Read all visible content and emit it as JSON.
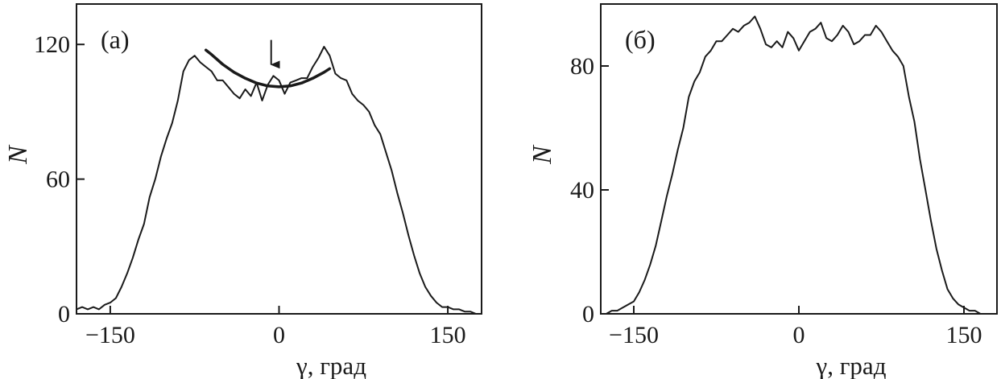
{
  "chart_data": [
    {
      "type": "line",
      "panel_label": "(а)",
      "xlabel": "γ, град",
      "ylabel": "N",
      "xlim": [
        -180,
        180
      ],
      "ylim": [
        0,
        138
      ],
      "xticks": [
        -150,
        0,
        150
      ],
      "yticks": [
        0,
        60,
        120
      ],
      "grid": false,
      "series": [
        {
          "x": [
            -180,
            -175,
            -170,
            -165,
            -160,
            -155,
            -150,
            -145,
            -140,
            -135,
            -130,
            -125,
            -120,
            -115,
            -110,
            -105,
            -100,
            -95,
            -90,
            -85,
            -80,
            -75,
            -70,
            -65,
            -60,
            -55,
            -50,
            -45,
            -40,
            -35,
            -30,
            -25,
            -20,
            -15,
            -10,
            -5,
            0,
            5,
            10,
            15,
            20,
            25,
            30,
            35,
            40,
            45,
            50,
            55,
            60,
            65,
            70,
            75,
            80,
            85,
            90,
            95,
            100,
            105,
            110,
            115,
            120,
            125,
            130,
            135,
            140,
            145,
            150,
            155,
            160,
            165,
            170,
            175,
            180
          ],
          "y": [
            2,
            3,
            2,
            3,
            2,
            4,
            5,
            7,
            12,
            18,
            25,
            33,
            40,
            52,
            60,
            70,
            78,
            85,
            95,
            108,
            113,
            115,
            112,
            110,
            108,
            104,
            104,
            101,
            98,
            96,
            100,
            97,
            103,
            95,
            102,
            106,
            104,
            98,
            103,
            104,
            105,
            105,
            110,
            114,
            119,
            115,
            107,
            105,
            104,
            98,
            95,
            93,
            90,
            84,
            80,
            72,
            64,
            54,
            45,
            35,
            26,
            18,
            12,
            8,
            5,
            3,
            3,
            2,
            2,
            1,
            1,
            0,
            0
          ]
        },
        {
          "x": [
            -65,
            -60,
            -50,
            -40,
            -30,
            -20,
            -10,
            0,
            10,
            20,
            30,
            40,
            45
          ],
          "y": [
            117.5,
            115.5,
            111.1,
            107.6,
            104.9,
            102.8,
            101.5,
            101.1,
            101.5,
            102.8,
            104.9,
            107.6,
            109.2
          ]
        }
      ],
      "annotations": [
        {
          "type": "arrow",
          "x": -7,
          "y_from": 122,
          "y_to": 111
        }
      ]
    },
    {
      "type": "line",
      "panel_label": "(б)",
      "xlabel": "γ, град",
      "ylabel": "N",
      "xlim": [
        -180,
        180
      ],
      "ylim": [
        0,
        100
      ],
      "xticks": [
        -150,
        0,
        150
      ],
      "yticks": [
        0,
        40,
        80
      ],
      "grid": false,
      "series": [
        {
          "x": [
            -180,
            -175,
            -170,
            -165,
            -160,
            -155,
            -150,
            -145,
            -140,
            -135,
            -130,
            -125,
            -120,
            -115,
            -110,
            -105,
            -100,
            -95,
            -90,
            -85,
            -80,
            -75,
            -70,
            -65,
            -60,
            -55,
            -50,
            -45,
            -40,
            -35,
            -30,
            -25,
            -20,
            -15,
            -10,
            -5,
            0,
            5,
            10,
            15,
            20,
            25,
            30,
            35,
            40,
            45,
            50,
            55,
            60,
            65,
            70,
            75,
            80,
            85,
            90,
            95,
            100,
            105,
            110,
            115,
            120,
            125,
            130,
            135,
            140,
            145,
            150,
            155,
            160,
            165,
            170,
            175,
            180
          ],
          "y": [
            0,
            0,
            1,
            1,
            2,
            3,
            4,
            7,
            11,
            16,
            22,
            30,
            38,
            45,
            53,
            60,
            70,
            75,
            78,
            83,
            85,
            88,
            88,
            90,
            92,
            91,
            93,
            94,
            96,
            92,
            87,
            86,
            88,
            86,
            91,
            89,
            85,
            88,
            91,
            92,
            94,
            89,
            88,
            90,
            93,
            91,
            87,
            88,
            90,
            90,
            93,
            91,
            88,
            85,
            83,
            80,
            70,
            62,
            50,
            40,
            30,
            21,
            14,
            8,
            5,
            3,
            2,
            1,
            1,
            0,
            0,
            0,
            0
          ]
        }
      ]
    }
  ]
}
